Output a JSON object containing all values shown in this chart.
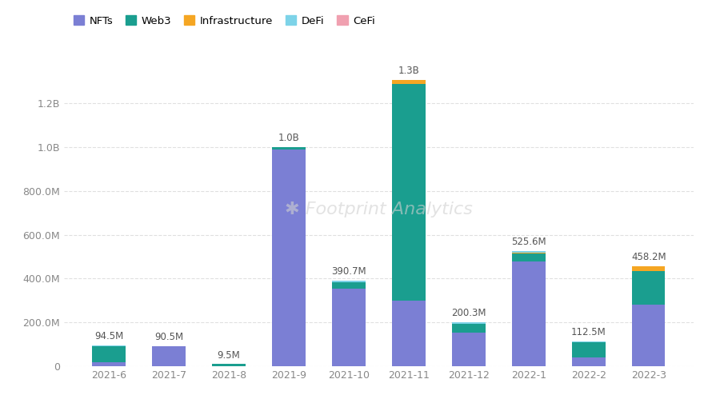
{
  "categories": [
    "2021-6",
    "2021-7",
    "2021-8",
    "2021-9",
    "2021-10",
    "2021-11",
    "2021-12",
    "2022-1",
    "2022-2",
    "2022-3"
  ],
  "series": {
    "NFTs": [
      20000000,
      90500000,
      0,
      990000000,
      355000000,
      300000000,
      155000000,
      480000000,
      40000000,
      280000000
    ],
    "Web3": [
      70000000,
      0,
      9500000,
      10000000,
      30000000,
      990000000,
      40000000,
      35000000,
      70000000,
      155000000
    ],
    "Infrastructure": [
      0,
      0,
      0,
      0,
      0,
      15000000,
      0,
      5000000,
      0,
      20000000
    ],
    "DeFi": [
      4500000,
      0,
      0,
      0,
      5700000,
      0,
      5300000,
      5600000,
      2500000,
      3200000
    ],
    "CeFi": [
      0,
      0,
      0,
      0,
      0,
      0,
      0,
      0,
      0,
      0
    ]
  },
  "totals_labels": [
    "94.5M",
    "90.5M",
    "9.5M",
    "1.0B",
    "390.7M",
    "1.3B",
    "200.3M",
    "525.6M",
    "112.5M",
    "458.2M"
  ],
  "totals_values": [
    94500000,
    90500000,
    9500000,
    1000000000,
    390700000,
    1305000000,
    200300000,
    525600000,
    112500000,
    458200000
  ],
  "colors": {
    "NFTs": "#7B7FD4",
    "Web3": "#1A9E8F",
    "Infrastructure": "#F5A623",
    "DeFi": "#7DD3E8",
    "CeFi": "#F0A0B0"
  },
  "ylim": [
    0,
    1430000000
  ],
  "yticks": [
    0,
    200000000,
    400000000,
    600000000,
    800000000,
    1000000000,
    1200000000
  ],
  "ytick_labels": [
    "0",
    "200.0M",
    "400.0M",
    "600.0M",
    "800.0M",
    "1.0B",
    "1.2B"
  ],
  "background_color": "#ffffff",
  "grid_color": "#e0e0e0",
  "watermark": "Footprint Analytics",
  "watermark_color": "#d0d0d0",
  "legend_order": [
    "NFTs",
    "Web3",
    "Infrastructure",
    "DeFi",
    "CeFi"
  ],
  "label_fontsize": 8.5,
  "axis_fontsize": 9,
  "bar_width": 0.55
}
